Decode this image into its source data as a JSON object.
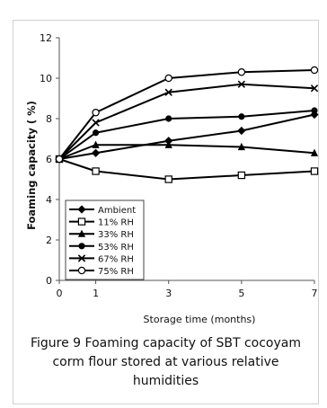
{
  "chart_data": {
    "type": "line",
    "title": "",
    "xlabel": "Storage time (months)",
    "ylabel": "Foaming capacity ( %)",
    "x": [
      0,
      1,
      3,
      5,
      7
    ],
    "x_ticks": [
      "0",
      "1",
      "3",
      "5",
      "7"
    ],
    "y_ticks": [
      "0",
      "2",
      "4",
      "6",
      "8",
      "10",
      "12"
    ],
    "ylim": [
      0,
      12
    ],
    "grid": false,
    "legend_position": "bottom-left-inside",
    "series": [
      {
        "name": "Ambient",
        "marker": "diamond",
        "values": [
          6.0,
          6.3,
          6.9,
          7.4,
          8.2
        ]
      },
      {
        "name": "11% RH",
        "marker": "square-open",
        "values": [
          6.0,
          5.4,
          5.0,
          5.2,
          5.4
        ]
      },
      {
        "name": "33% RH",
        "marker": "triangle",
        "values": [
          6.0,
          6.7,
          6.7,
          6.6,
          6.3
        ]
      },
      {
        "name": "53% RH",
        "marker": "circle",
        "values": [
          6.0,
          7.3,
          8.0,
          8.1,
          8.4
        ]
      },
      {
        "name": "67% RH",
        "marker": "x",
        "values": [
          6.0,
          7.8,
          9.3,
          9.7,
          9.5
        ]
      },
      {
        "name": "75% RH",
        "marker": "circle-open",
        "values": [
          6.0,
          8.3,
          10.0,
          10.3,
          10.4
        ]
      }
    ],
    "line_color": "#000000"
  },
  "caption": {
    "line1": "Figure  9 Foaming capacity of SBT cocoyam",
    "line2": "corm flour stored at various relative",
    "line3": "humidities"
  }
}
